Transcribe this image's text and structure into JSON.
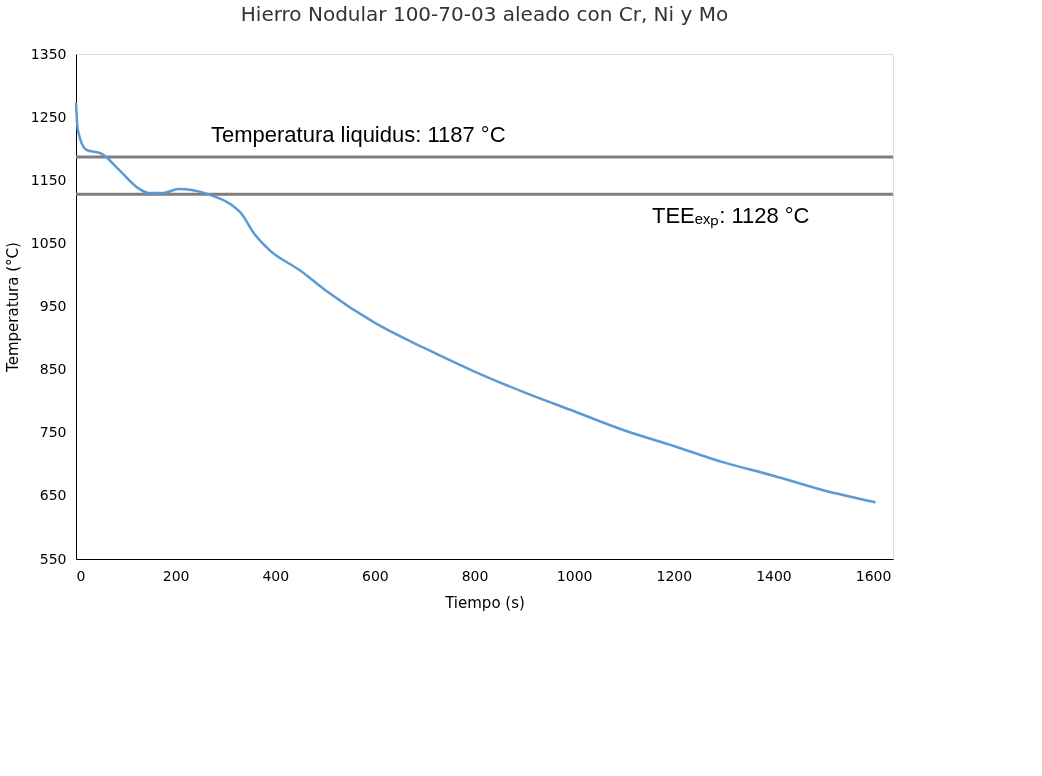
{
  "chart_data": {
    "type": "line",
    "title": "Hierro Nodular 100-70-03 aleado con Cr, Ni y Mo",
    "xlabel": "Tiempo (s)",
    "ylabel": "Temperatura (°C)",
    "x": [
      0,
      3.6,
      21,
      51,
      87,
      122,
      146,
      176,
      205,
      265,
      312,
      330,
      359,
      389,
      450,
      502,
      600,
      700,
      800,
      900,
      1000,
      1100,
      1200,
      1300,
      1400,
      1500,
      1605
    ],
    "series": [
      {
        "color": "#5b9bd5",
        "values": [
          1273,
          1230,
          1198,
          1192,
          1166,
          1139,
          1130,
          1130,
          1136,
          1128,
          1111,
          1099,
          1064,
          1039,
          1007,
          975,
          924,
          884,
          847,
          814,
          784,
          754,
          729,
          703,
          682,
          659,
          640
        ]
      }
    ],
    "xlim": [
      0,
      1640
    ],
    "xticks": [
      0,
      200,
      400,
      600,
      800,
      1000,
      1200,
      1400,
      1600
    ],
    "ylim": [
      550,
      1350
    ],
    "yticks": [
      550,
      650,
      750,
      850,
      950,
      1050,
      1150,
      1250,
      1350
    ],
    "ref_lines": [
      {
        "axis": "y",
        "value": 1187,
        "label": "Temperatura liquidus: 1187 °C",
        "color": "#7f7f7f"
      },
      {
        "axis": "y",
        "value": 1128,
        "label": "TEEₑₓₚ: 1128 °C",
        "color": "#7f7f7f"
      }
    ],
    "grid": false,
    "marker": "none",
    "line_style": "solid"
  }
}
